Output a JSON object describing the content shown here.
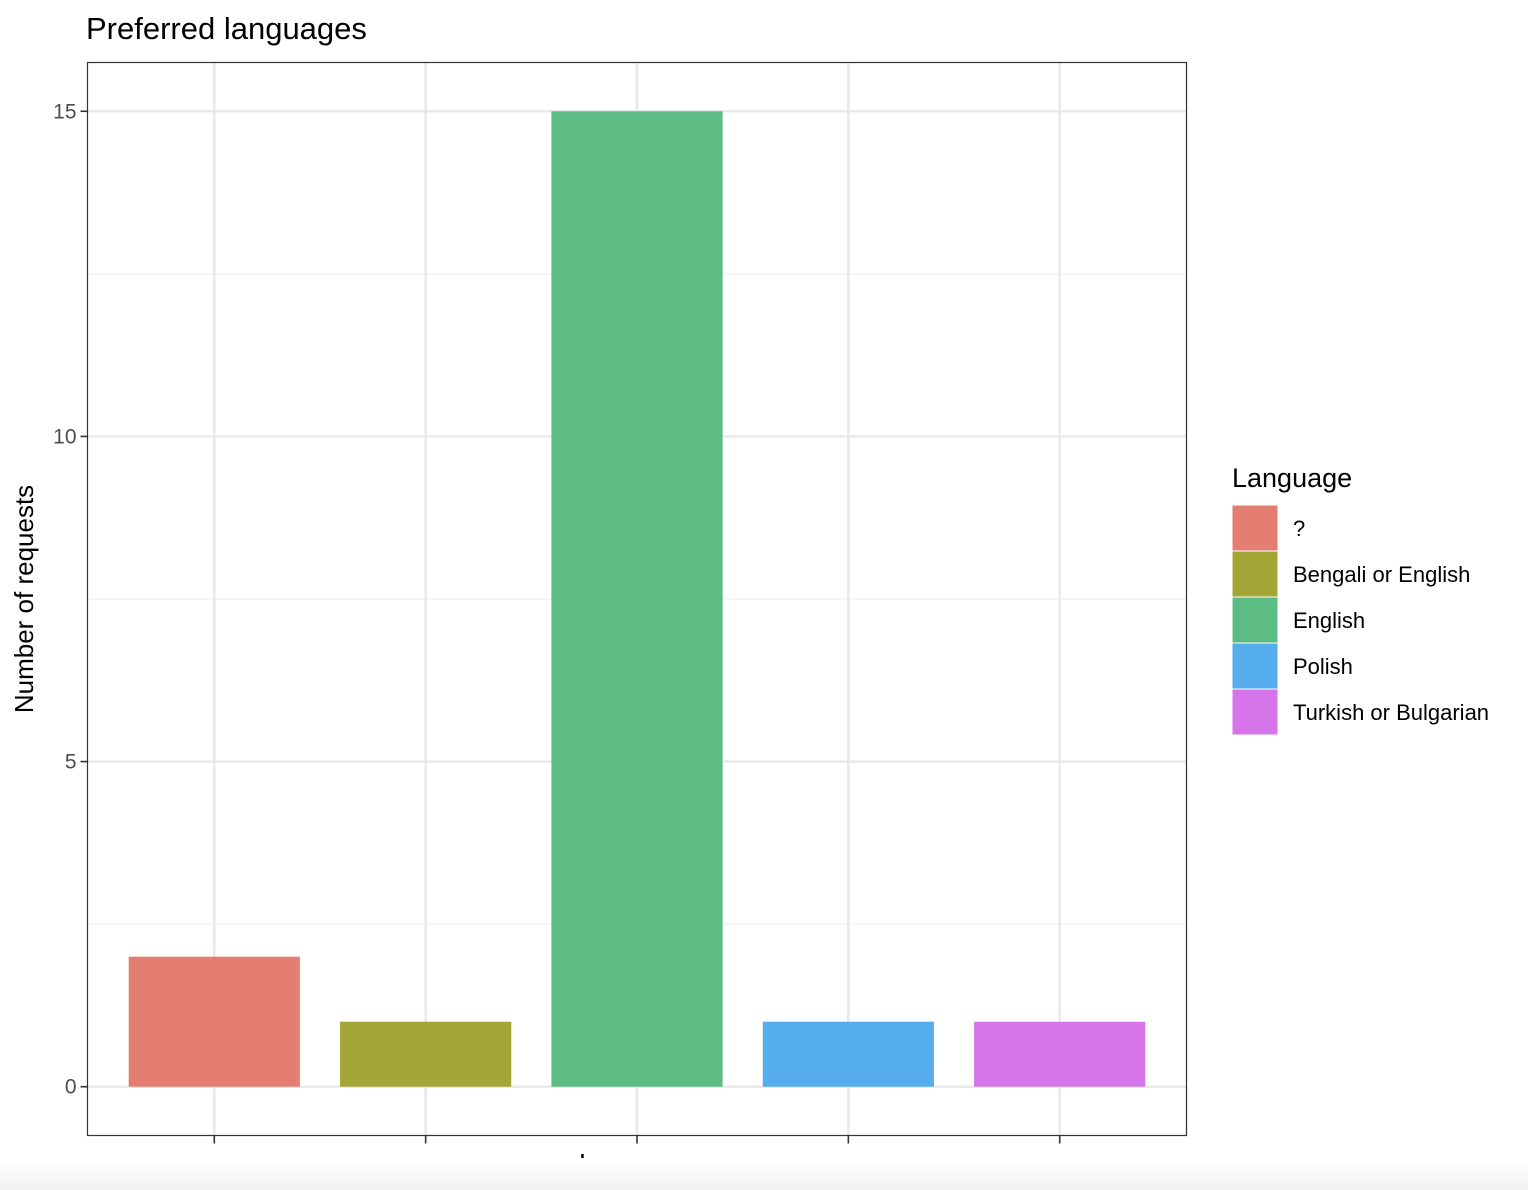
{
  "chart_data": {
    "type": "bar",
    "title": "Preferred languages",
    "xlabel": "Language",
    "ylabel": "Number of requests",
    "categories": [
      "?",
      "Bengali or English",
      "English",
      "Polish",
      "Turkish or Bulgarian"
    ],
    "values": [
      2,
      1,
      15,
      1,
      1
    ],
    "colors": [
      "#E47E73",
      "#A3A535",
      "#5DBB84",
      "#55ADEE",
      "#D675E9"
    ],
    "ylim": [
      -0.75,
      15.75
    ],
    "yticks": [
      0,
      5,
      10,
      15
    ],
    "ytick_labels": [
      "0",
      "5",
      "10",
      "15"
    ],
    "x_tick_labels_shown": false,
    "grid": true,
    "legend": {
      "title": "Language",
      "position": "right",
      "entries": [
        "?",
        "Bengali or English",
        "English",
        "Polish",
        "Turkish or Bulgarian"
      ]
    }
  }
}
